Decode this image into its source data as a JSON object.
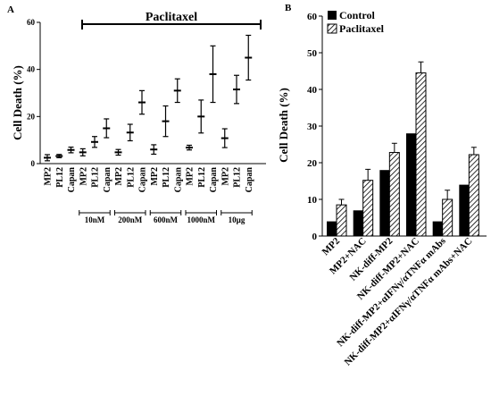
{
  "panel_a": {
    "label": "A",
    "ylabel": "Cell Death (%)",
    "treatment_label": "Paclitaxel",
    "chart_data": {
      "type": "scatter",
      "ylabel": "Cell Death (%)",
      "ylim": [
        0,
        60
      ],
      "yticks": [
        0,
        20,
        40,
        60
      ],
      "categories": [
        "MP2",
        "PL12",
        "Capan",
        "MP2",
        "PL12",
        "Capan",
        "MP2",
        "PL12",
        "Capan",
        "MP2",
        "PL12",
        "Capan",
        "MP2",
        "PL12",
        "Capan",
        "MP2",
        "PL12",
        "Capan"
      ],
      "groups": [
        {
          "name": "",
          "start": 0,
          "end": 2
        },
        {
          "name": "10nM",
          "start": 3,
          "end": 5
        },
        {
          "name": "200nM",
          "start": 6,
          "end": 8
        },
        {
          "name": "600nM",
          "start": 9,
          "end": 11
        },
        {
          "name": "1000nM",
          "start": 12,
          "end": 14
        },
        {
          "name": "10µg",
          "start": 15,
          "end": 17
        }
      ],
      "values": [
        2.5,
        3.2,
        5.8,
        4.8,
        9.2,
        15.0,
        4.8,
        13.2,
        26.0,
        6.0,
        18.0,
        31.0,
        6.8,
        20.0,
        38.0,
        10.8,
        31.5,
        45.0
      ],
      "errors": [
        1.3,
        0.7,
        1.2,
        1.5,
        2.3,
        4.0,
        1.2,
        3.5,
        5.0,
        2.0,
        6.5,
        5.0,
        1.0,
        7.0,
        12.0,
        4.0,
        6.0,
        9.5
      ]
    }
  },
  "panel_b": {
    "label": "B",
    "ylabel": "Cell Death (%)",
    "chart_data": {
      "type": "bar",
      "ylabel": "Cell Death (%)",
      "ylim": [
        0,
        60
      ],
      "yticks": [
        0,
        10,
        20,
        30,
        40,
        50,
        60
      ],
      "legend": "top-left",
      "categories": [
        "MP2",
        "MP2+NAC",
        "NK-diff-MP2",
        "NK-diff-MP2+NAC",
        "NK-diff-MP2+αIFNγ/αTNFα  mAbs",
        "NK-diff-MP2+αIFNγ/αTNFα  mAbs+NAC"
      ],
      "series": [
        {
          "name": "Control",
          "values": [
            4.0,
            7.0,
            18.0,
            28.0,
            4.0,
            14.0
          ],
          "errors": [
            0,
            0,
            0,
            0,
            0,
            0
          ]
        },
        {
          "name": "Paclitaxel",
          "values": [
            8.5,
            15.2,
            22.8,
            44.5,
            10.0,
            22.2
          ],
          "errors": [
            1.5,
            3.0,
            2.5,
            3.0,
            2.5,
            2.0
          ]
        }
      ]
    }
  },
  "colors": {
    "control": "#000000",
    "paclitaxel_hatch": "#000000",
    "background": "#ffffff"
  }
}
